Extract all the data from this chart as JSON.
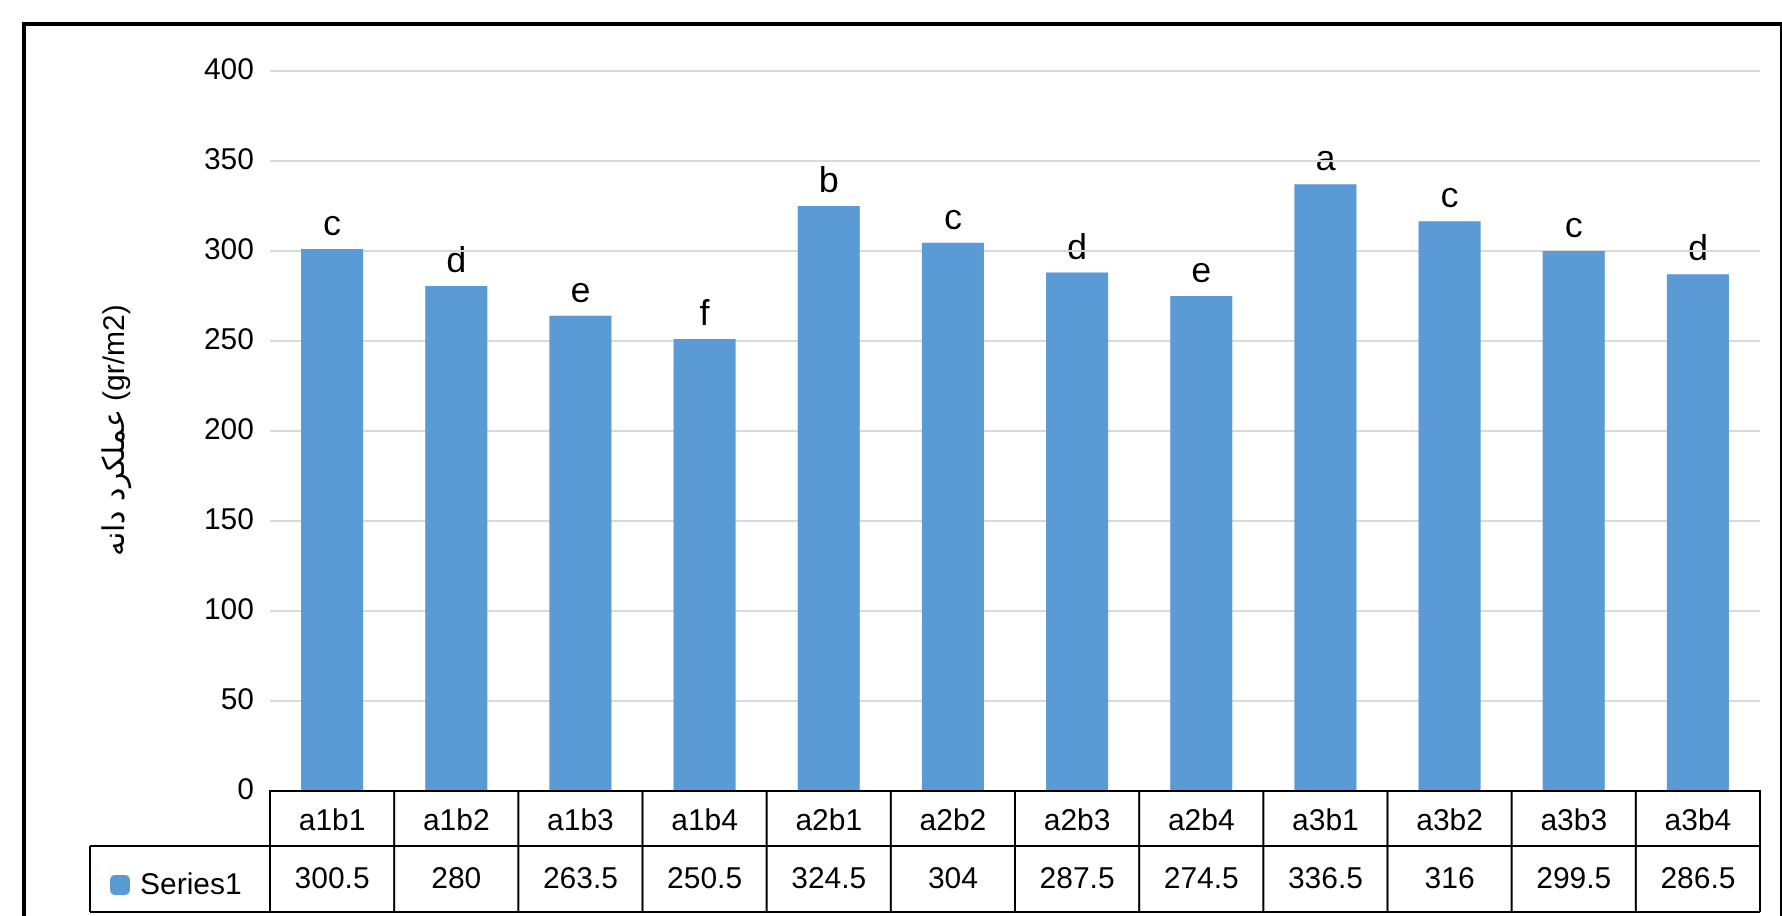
{
  "chart_data": {
    "type": "bar",
    "ylabel": "عملکرد دانه (gr/m2)",
    "categories": [
      "a1b1",
      "a1b2",
      "a1b3",
      "a1b4",
      "a2b1",
      "a2b2",
      "a2b3",
      "a2b4",
      "a3b1",
      "a3b2",
      "a3b3",
      "a3b4"
    ],
    "series": [
      {
        "name": "Series1",
        "color": "#5b9bd5",
        "values": [
          300.5,
          280,
          263.5,
          250.5,
          324.5,
          304,
          287.5,
          274.5,
          336.5,
          316,
          299.5,
          286.5
        ]
      }
    ],
    "ylim": [
      0,
      400
    ],
    "yticks": [
      0,
      50,
      100,
      150,
      200,
      250,
      300,
      350,
      400
    ],
    "grid": "y",
    "legend": "bottom",
    "data_labels": true,
    "annotations": [
      {
        "text": "c",
        "x": "a1b1",
        "y": 300.5
      },
      {
        "text": "d",
        "x": "a1b2",
        "y": 280
      },
      {
        "text": "e",
        "x": "a1b3",
        "y": 263.5
      },
      {
        "text": "f",
        "x": "a1b4",
        "y": 250.5
      },
      {
        "text": "b",
        "x": "a2b1",
        "y": 324.5
      },
      {
        "text": "c",
        "x": "a2b2",
        "y": 304
      },
      {
        "text": "d",
        "x": "a2b3",
        "y": 287.5
      },
      {
        "text": "e",
        "x": "a2b4",
        "y": 274.5
      },
      {
        "text": "a",
        "x": "a3b1",
        "y": 336.5
      },
      {
        "text": "c",
        "x": "a3b2",
        "y": 316
      },
      {
        "text": "c",
        "x": "a3b3",
        "y": 299.5
      },
      {
        "text": "d",
        "x": "a3b4",
        "y": 286.5
      }
    ]
  }
}
